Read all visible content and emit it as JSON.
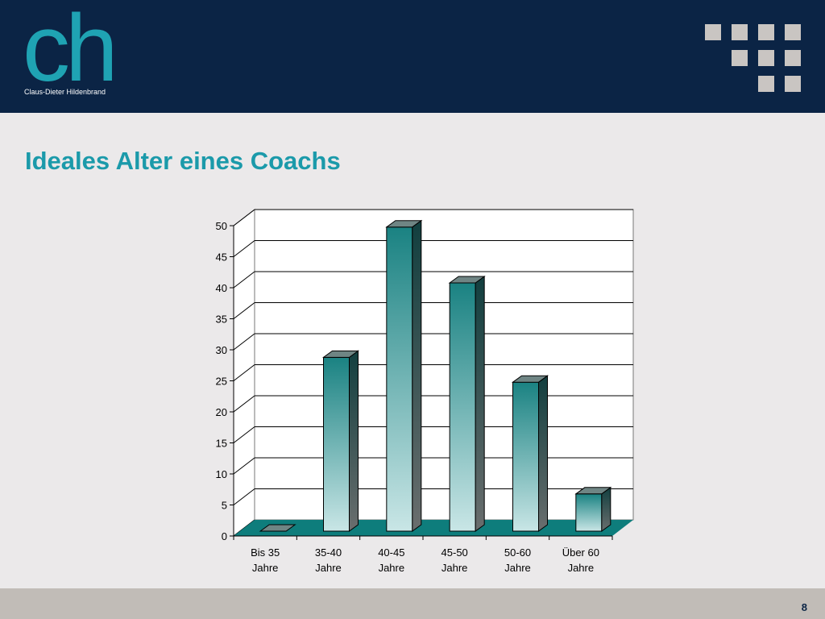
{
  "header": {
    "logo_letters": "ch",
    "logo_name": "Claus-Dieter Hildenbrand"
  },
  "title": "Ideales Alter eines Coachs",
  "page_number": "8",
  "colors": {
    "header": "#0b2445",
    "accent": "#1b9aaa",
    "floor": "#0e7d7c",
    "bar_top": "#1a8282",
    "bar_bottom": "#c9e6e6"
  },
  "chart_data": {
    "type": "bar",
    "style": "3d-column",
    "categories": [
      [
        "Bis 35",
        "Jahre"
      ],
      [
        "35-40",
        "Jahre"
      ],
      [
        "40-45",
        "Jahre"
      ],
      [
        "45-50",
        "Jahre"
      ],
      [
        "50-60",
        "Jahre"
      ],
      [
        "Über 60",
        "Jahre"
      ]
    ],
    "values": [
      0,
      28,
      49,
      40,
      24,
      6
    ],
    "yticks": [
      0,
      5,
      10,
      15,
      20,
      25,
      30,
      35,
      40,
      45,
      50
    ],
    "ylim": [
      0,
      50
    ],
    "grid": true,
    "legend": "none"
  }
}
